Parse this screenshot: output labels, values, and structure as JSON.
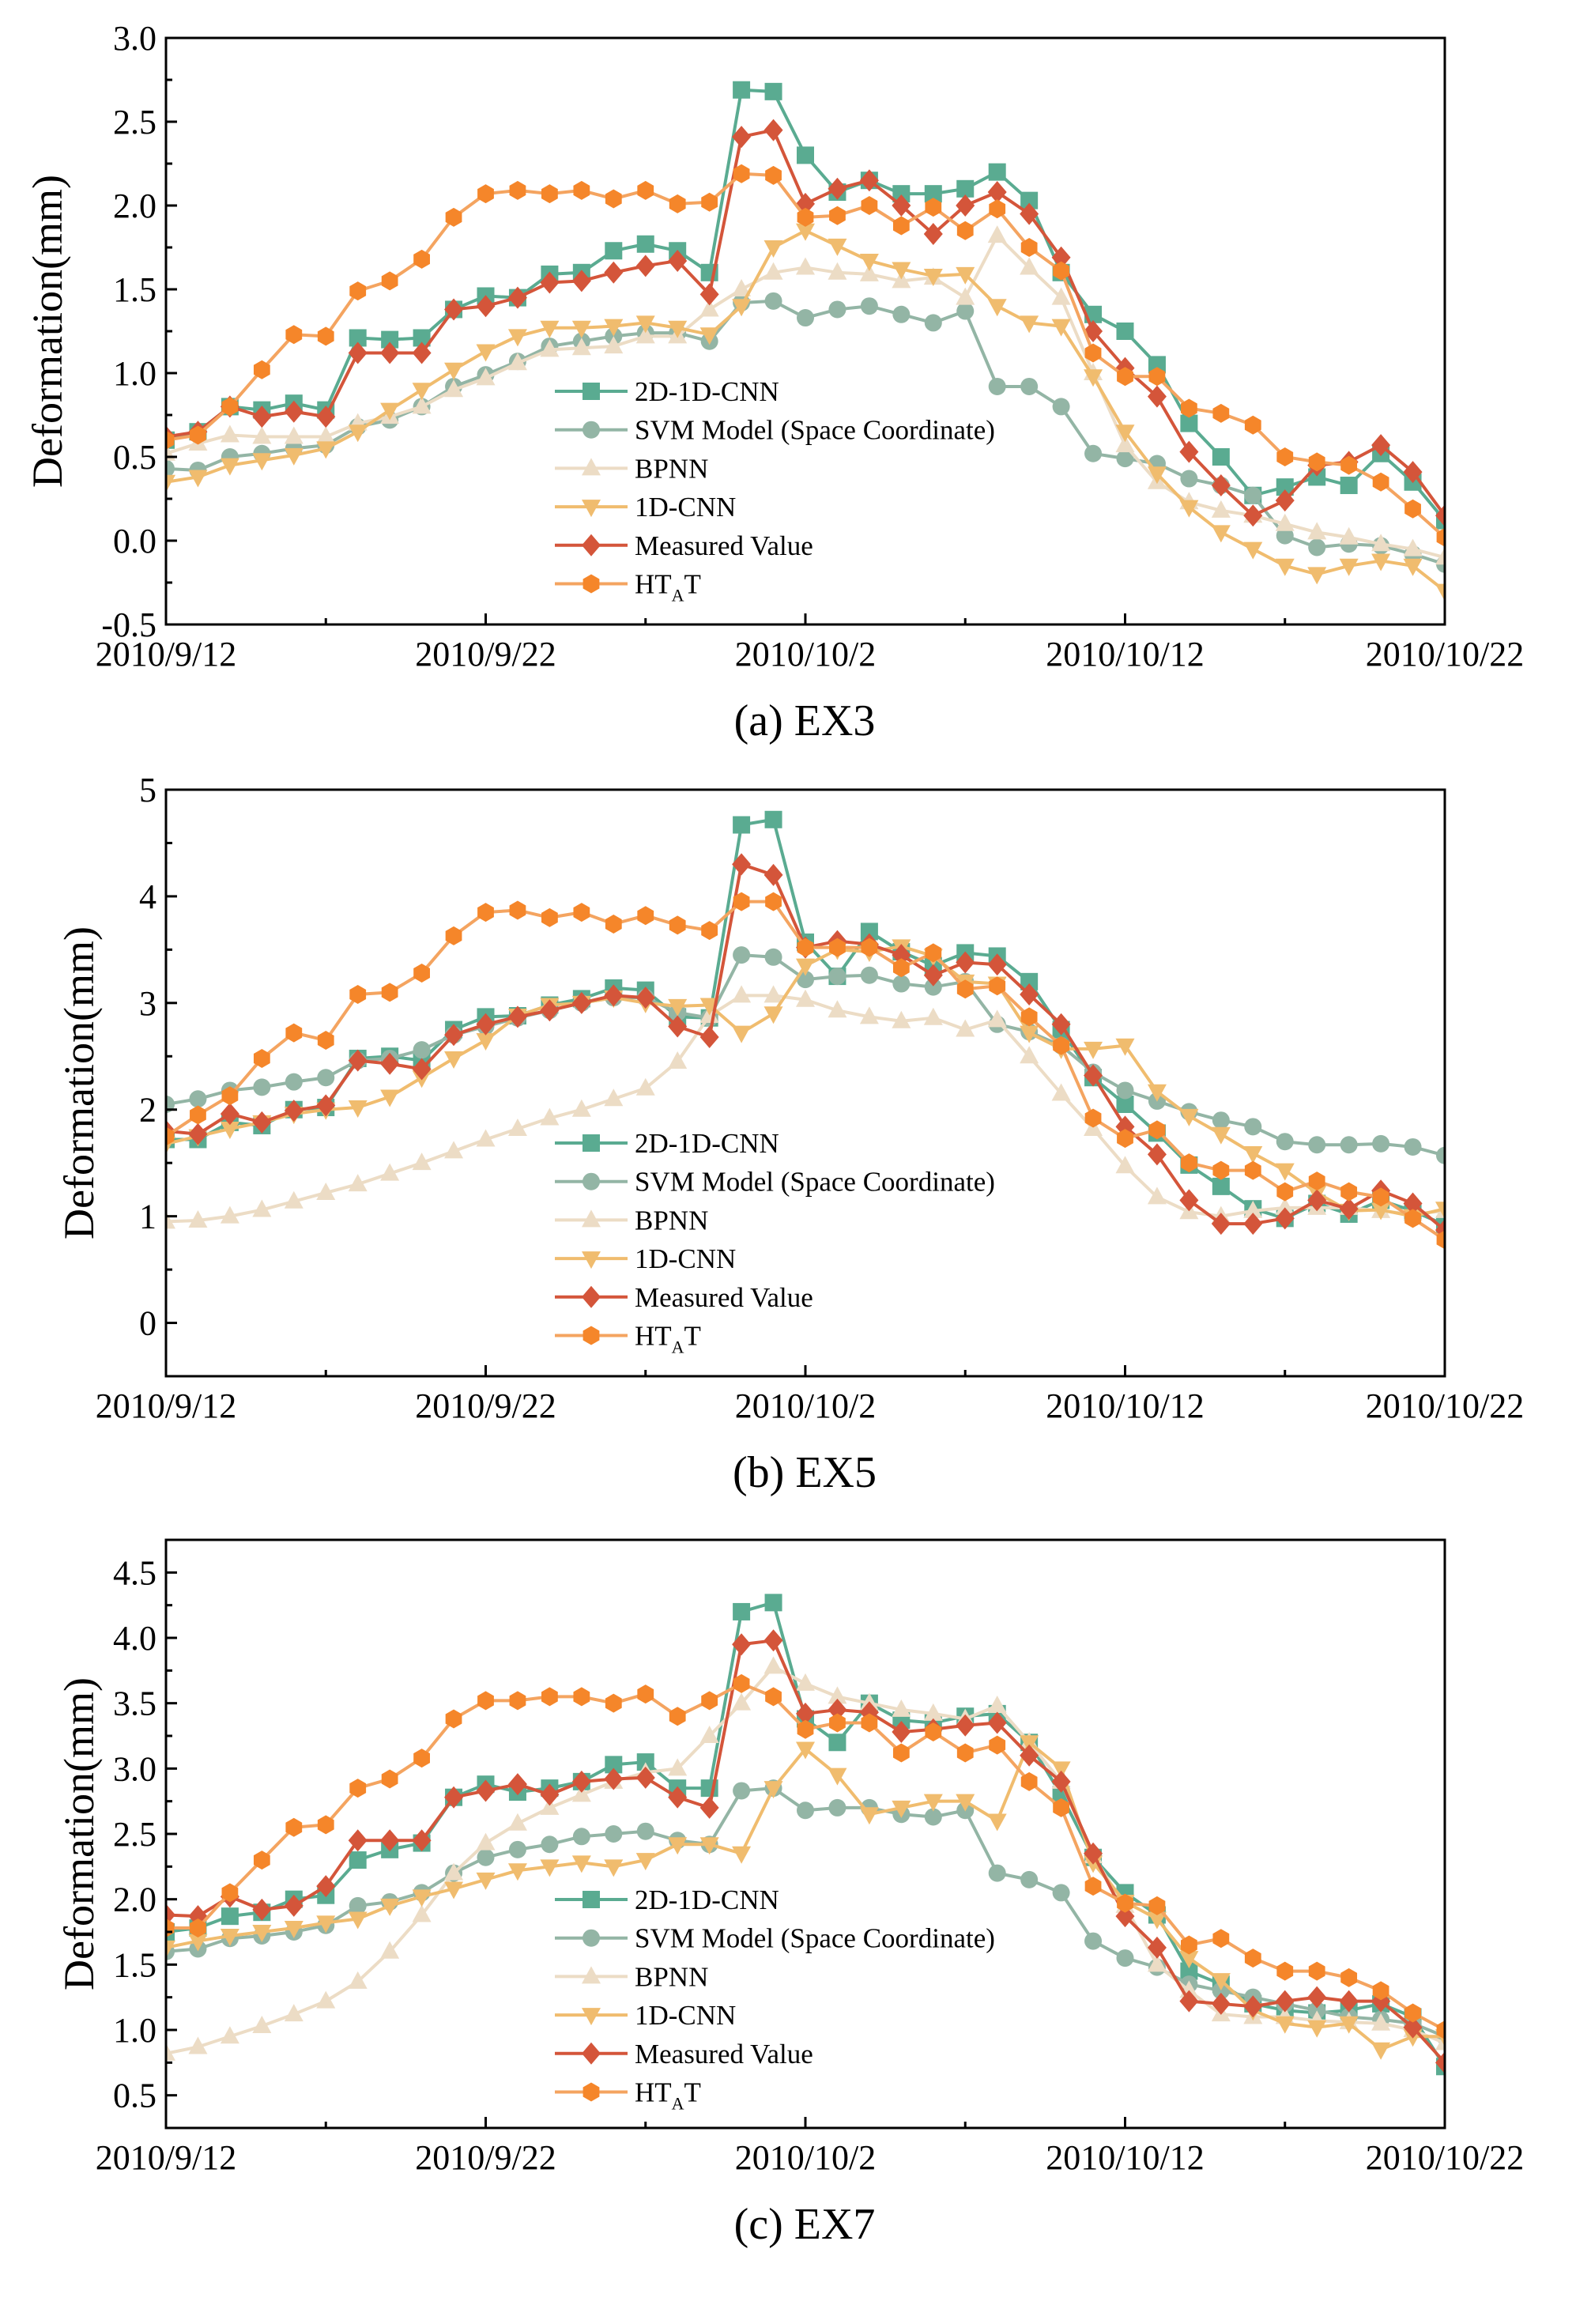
{
  "chart_data": [
    {
      "type": "line",
      "caption": "(a) EX3",
      "ylabel": "Deformation(mm)",
      "xlabel": "",
      "ylim": [
        -0.5,
        3.0
      ],
      "yticks": [
        -0.5,
        0.0,
        0.5,
        1.0,
        1.5,
        2.0,
        2.5,
        3.0
      ],
      "ytick_labels": [
        "-0.5",
        "0.0",
        "0.5",
        "1.0",
        "1.5",
        "2.0",
        "2.5",
        "3.0"
      ],
      "x_start": "2010/9/12",
      "x_days": 40,
      "xtick_days": [
        0,
        10,
        20,
        30,
        40
      ],
      "xtick_labels": [
        "2010/9/12",
        "2010/9/22",
        "2010/10/2",
        "2010/10/12",
        "2010/10/22"
      ],
      "legend_position": "center",
      "series": [
        {
          "name": "2D-1D-CNN",
          "values": [
            0.6,
            0.65,
            0.8,
            0.78,
            0.82,
            0.78,
            1.21,
            1.2,
            1.21,
            1.38,
            1.46,
            1.45,
            1.59,
            1.6,
            1.73,
            1.77,
            1.73,
            1.6,
            2.69,
            2.68,
            2.3,
            2.08,
            2.15,
            2.07,
            2.07,
            2.1,
            2.2,
            2.03,
            1.6,
            1.35,
            1.25,
            1.05,
            0.7,
            0.5,
            0.27,
            0.32,
            0.38,
            0.33,
            0.52,
            0.35,
            0.12
          ]
        },
        {
          "name": "SVM Model (Space Coordinate)",
          "values": [
            0.43,
            0.42,
            0.5,
            0.52,
            0.55,
            0.57,
            0.68,
            0.72,
            0.8,
            0.92,
            0.99,
            1.07,
            1.16,
            1.19,
            1.22,
            1.24,
            1.24,
            1.19,
            1.42,
            1.43,
            1.33,
            1.38,
            1.4,
            1.35,
            1.3,
            1.37,
            0.92,
            0.92,
            0.8,
            0.52,
            0.49,
            0.46,
            0.37,
            0.33,
            0.27,
            0.03,
            -0.04,
            -0.02,
            -0.03,
            -0.08,
            -0.14
          ]
        },
        {
          "name": "BPNN",
          "values": [
            0.52,
            0.58,
            0.63,
            0.62,
            0.62,
            0.62,
            0.7,
            0.74,
            0.8,
            0.9,
            0.97,
            1.06,
            1.14,
            1.15,
            1.16,
            1.22,
            1.22,
            1.38,
            1.5,
            1.6,
            1.63,
            1.6,
            1.59,
            1.55,
            1.57,
            1.45,
            1.82,
            1.63,
            1.45,
            1.0,
            0.57,
            0.35,
            0.23,
            0.18,
            0.15,
            0.1,
            0.05,
            0.02,
            -0.02,
            -0.05,
            -0.1
          ]
        },
        {
          "name": "1D-CNN",
          "values": [
            0.35,
            0.38,
            0.45,
            0.48,
            0.51,
            0.55,
            0.65,
            0.78,
            0.9,
            1.02,
            1.13,
            1.22,
            1.27,
            1.27,
            1.28,
            1.3,
            1.27,
            1.23,
            1.4,
            1.75,
            1.85,
            1.76,
            1.67,
            1.62,
            1.58,
            1.59,
            1.4,
            1.3,
            1.28,
            0.98,
            0.65,
            0.4,
            0.2,
            0.05,
            -0.05,
            -0.15,
            -0.2,
            -0.15,
            -0.12,
            -0.15,
            -0.3
          ]
        },
        {
          "name": "Measured Value",
          "values": [
            0.62,
            0.65,
            0.8,
            0.74,
            0.77,
            0.74,
            1.12,
            1.12,
            1.12,
            1.38,
            1.4,
            1.45,
            1.54,
            1.55,
            1.6,
            1.64,
            1.67,
            1.47,
            2.41,
            2.45,
            2.01,
            2.1,
            2.15,
            2.0,
            1.83,
            2.0,
            2.08,
            1.95,
            1.69,
            1.25,
            1.03,
            0.86,
            0.53,
            0.33,
            0.15,
            0.24,
            0.45,
            0.47,
            0.57,
            0.41,
            0.15
          ]
        },
        {
          "name": "HTAT",
          "values": [
            0.6,
            0.63,
            0.8,
            1.02,
            1.23,
            1.22,
            1.49,
            1.55,
            1.68,
            1.93,
            2.07,
            2.09,
            2.07,
            2.09,
            2.04,
            2.09,
            2.01,
            2.02,
            2.19,
            2.18,
            1.93,
            1.94,
            2.0,
            1.88,
            1.99,
            1.85,
            1.98,
            1.75,
            1.61,
            1.12,
            0.98,
            0.98,
            0.79,
            0.76,
            0.69,
            0.5,
            0.47,
            0.45,
            0.35,
            0.19,
            0.02
          ]
        }
      ]
    },
    {
      "type": "line",
      "caption": "(b) EX5",
      "ylabel": "Deformation(mm)",
      "xlabel": "",
      "ylim": [
        -0.5,
        5.0
      ],
      "yticks": [
        0,
        1,
        2,
        3,
        4,
        5
      ],
      "ytick_labels": [
        "0",
        "1",
        "2",
        "3",
        "4",
        "5"
      ],
      "x_start": "2010/9/12",
      "x_days": 40,
      "xtick_days": [
        0,
        10,
        20,
        30,
        40
      ],
      "xtick_labels": [
        "2010/9/12",
        "2010/9/22",
        "2010/10/2",
        "2010/10/12",
        "2010/10/22"
      ],
      "legend_position": "center",
      "series": [
        {
          "name": "2D-1D-CNN",
          "values": [
            1.72,
            1.72,
            1.88,
            1.85,
            2.0,
            2.02,
            2.48,
            2.5,
            2.46,
            2.75,
            2.87,
            2.88,
            2.98,
            3.04,
            3.14,
            3.12,
            2.87,
            2.86,
            4.67,
            4.72,
            3.57,
            3.25,
            3.67,
            3.48,
            3.35,
            3.47,
            3.44,
            3.2,
            2.75,
            2.3,
            2.05,
            1.78,
            1.48,
            1.28,
            1.07,
            0.98,
            1.12,
            1.02,
            1.15,
            1.05,
            0.92
          ]
        },
        {
          "name": "SVM Model (Space Coordinate)",
          "values": [
            2.05,
            2.1,
            2.18,
            2.21,
            2.26,
            2.3,
            2.46,
            2.48,
            2.56,
            2.7,
            2.78,
            2.86,
            2.93,
            3.0,
            3.05,
            3.05,
            2.91,
            2.86,
            3.45,
            3.43,
            3.22,
            3.25,
            3.26,
            3.18,
            3.15,
            3.2,
            2.8,
            2.73,
            2.6,
            2.35,
            2.18,
            2.08,
            1.98,
            1.9,
            1.84,
            1.7,
            1.67,
            1.67,
            1.68,
            1.65,
            1.57
          ]
        },
        {
          "name": "BPNN",
          "values": [
            0.95,
            0.96,
            1.0,
            1.06,
            1.14,
            1.22,
            1.3,
            1.4,
            1.5,
            1.61,
            1.72,
            1.82,
            1.92,
            2.0,
            2.1,
            2.2,
            2.45,
            2.88,
            3.07,
            3.07,
            3.03,
            2.93,
            2.87,
            2.83,
            2.86,
            2.75,
            2.84,
            2.5,
            2.15,
            1.82,
            1.47,
            1.18,
            1.04,
            1.0,
            1.05,
            1.08,
            1.08,
            1.08,
            1.05,
            1.02,
            1.05
          ]
        },
        {
          "name": "1D-CNN",
          "values": [
            1.68,
            1.75,
            1.82,
            1.88,
            1.96,
            2.0,
            2.02,
            2.12,
            2.3,
            2.48,
            2.65,
            2.88,
            2.98,
            3.0,
            3.05,
            3.0,
            2.97,
            2.98,
            2.72,
            2.9,
            3.35,
            3.5,
            3.48,
            3.53,
            3.44,
            3.2,
            3.18,
            2.72,
            2.57,
            2.57,
            2.6,
            2.17,
            1.94,
            1.77,
            1.59,
            1.43,
            1.22,
            1.05,
            1.06,
            1.0,
            1.07
          ]
        },
        {
          "name": "Measured Value",
          "values": [
            1.8,
            1.77,
            1.96,
            1.88,
            1.99,
            2.04,
            2.46,
            2.43,
            2.38,
            2.7,
            2.8,
            2.87,
            2.93,
            3.0,
            3.07,
            3.05,
            2.78,
            2.68,
            4.3,
            4.2,
            3.52,
            3.58,
            3.55,
            3.45,
            3.26,
            3.38,
            3.36,
            3.08,
            2.8,
            2.32,
            1.84,
            1.58,
            1.15,
            0.93,
            0.93,
            0.98,
            1.15,
            1.07,
            1.24,
            1.12,
            0.87
          ]
        },
        {
          "name": "HTAT",
          "values": [
            1.75,
            1.95,
            2.13,
            2.48,
            2.72,
            2.65,
            3.08,
            3.1,
            3.28,
            3.63,
            3.85,
            3.87,
            3.8,
            3.85,
            3.74,
            3.82,
            3.73,
            3.68,
            3.95,
            3.95,
            3.52,
            3.52,
            3.52,
            3.33,
            3.47,
            3.13,
            3.16,
            2.87,
            2.6,
            1.92,
            1.73,
            1.81,
            1.5,
            1.43,
            1.43,
            1.23,
            1.33,
            1.23,
            1.18,
            0.98,
            0.78
          ]
        }
      ]
    },
    {
      "type": "line",
      "caption": "(c) EX7",
      "ylabel": "Deformation(mm)",
      "xlabel": "",
      "ylim": [
        0.25,
        4.75
      ],
      "yticks": [
        0.5,
        1.0,
        1.5,
        2.0,
        2.5,
        3.0,
        3.5,
        4.0,
        4.5
      ],
      "ytick_labels": [
        "0.5",
        "1.0",
        "1.5",
        "2.0",
        "2.5",
        "3.0",
        "3.5",
        "4.0",
        "4.5"
      ],
      "x_start": "2010/9/12",
      "x_days": 40,
      "xtick_days": [
        0,
        10,
        20,
        30,
        40
      ],
      "xtick_labels": [
        "2010/9/12",
        "2010/9/22",
        "2010/10/2",
        "2010/10/12",
        "2010/10/22"
      ],
      "legend_position": "center",
      "series": [
        {
          "name": "2D-1D-CNN",
          "values": [
            1.75,
            1.78,
            1.87,
            1.9,
            2.0,
            2.03,
            2.3,
            2.38,
            2.43,
            2.78,
            2.88,
            2.82,
            2.85,
            2.9,
            3.03,
            3.05,
            2.85,
            2.85,
            4.2,
            4.27,
            3.38,
            3.2,
            3.5,
            3.37,
            3.35,
            3.4,
            3.42,
            3.2,
            2.8,
            2.32,
            2.05,
            1.88,
            1.45,
            1.35,
            1.2,
            1.15,
            1.13,
            1.15,
            1.2,
            1.1,
            0.72
          ]
        },
        {
          "name": "SVM Model (Space Coordinate)",
          "values": [
            1.6,
            1.62,
            1.7,
            1.72,
            1.75,
            1.8,
            1.95,
            1.98,
            2.05,
            2.2,
            2.32,
            2.38,
            2.42,
            2.48,
            2.5,
            2.52,
            2.45,
            2.42,
            2.83,
            2.85,
            2.68,
            2.7,
            2.7,
            2.65,
            2.63,
            2.68,
            2.2,
            2.15,
            2.05,
            1.68,
            1.55,
            1.48,
            1.35,
            1.3,
            1.25,
            1.2,
            1.15,
            1.1,
            1.08,
            1.05,
            0.95
          ]
        },
        {
          "name": "BPNN",
          "values": [
            0.82,
            0.87,
            0.95,
            1.03,
            1.12,
            1.22,
            1.37,
            1.6,
            1.88,
            2.2,
            2.43,
            2.58,
            2.7,
            2.8,
            2.9,
            2.97,
            3.0,
            3.25,
            3.5,
            3.78,
            3.65,
            3.55,
            3.5,
            3.45,
            3.42,
            3.38,
            3.48,
            3.2,
            2.9,
            2.33,
            1.95,
            1.5,
            1.3,
            1.12,
            1.1,
            1.1,
            1.07,
            1.06,
            1.05,
            1.0,
            0.9
          ]
        },
        {
          "name": "1D-CNN",
          "values": [
            1.63,
            1.68,
            1.72,
            1.75,
            1.78,
            1.82,
            1.85,
            1.95,
            2.02,
            2.08,
            2.15,
            2.22,
            2.25,
            2.28,
            2.25,
            2.3,
            2.42,
            2.42,
            2.35,
            2.85,
            3.15,
            2.95,
            2.65,
            2.7,
            2.75,
            2.75,
            2.6,
            3.2,
            3.0,
            2.28,
            1.98,
            1.85,
            1.55,
            1.38,
            1.15,
            1.05,
            1.02,
            1.05,
            0.85,
            0.95,
            0.95
          ]
        },
        {
          "name": "Measured Value",
          "values": [
            1.88,
            1.87,
            2.02,
            1.92,
            1.95,
            2.1,
            2.45,
            2.45,
            2.45,
            2.78,
            2.83,
            2.88,
            2.8,
            2.9,
            2.92,
            2.93,
            2.78,
            2.7,
            3.95,
            3.98,
            3.42,
            3.45,
            3.43,
            3.28,
            3.3,
            3.33,
            3.35,
            3.1,
            2.9,
            2.35,
            1.87,
            1.63,
            1.22,
            1.2,
            1.18,
            1.22,
            1.25,
            1.22,
            1.22,
            1.02,
            0.75
          ]
        },
        {
          "name": "HTAT",
          "values": [
            1.78,
            1.78,
            2.05,
            2.3,
            2.55,
            2.57,
            2.85,
            2.92,
            3.08,
            3.38,
            3.52,
            3.52,
            3.55,
            3.55,
            3.5,
            3.57,
            3.4,
            3.52,
            3.65,
            3.55,
            3.3,
            3.35,
            3.35,
            3.12,
            3.28,
            3.12,
            3.18,
            2.9,
            2.7,
            2.1,
            1.97,
            1.95,
            1.65,
            1.7,
            1.55,
            1.45,
            1.45,
            1.4,
            1.3,
            1.13,
            1.0
          ]
        }
      ]
    }
  ],
  "legend": [
    {
      "label": "2D-1D-CNN",
      "marker": "square",
      "line_color": "#5aab91",
      "marker_color": "#5aab91"
    },
    {
      "label": "SVM Model (Space Coordinate)",
      "marker": "circle",
      "line_color": "#93b5a5",
      "marker_color": "#93b5a5"
    },
    {
      "label": "BPNN",
      "marker": "triangle-up",
      "line_color": "#ecdcc5",
      "marker_color": "#ecdcc5"
    },
    {
      "label": "1D-CNN",
      "marker": "triangle-down",
      "line_color": "#f0bc6e",
      "marker_color": "#f0bc6e"
    },
    {
      "label": "Measured Value",
      "marker": "diamond",
      "line_color": "#d4553a",
      "marker_color": "#d4553a"
    },
    {
      "label": "HT",
      "label_sub": "A",
      "label_tail": "T",
      "marker": "hexagon",
      "line_color": "#f4a460",
      "marker_color": "#f5862a"
    }
  ]
}
